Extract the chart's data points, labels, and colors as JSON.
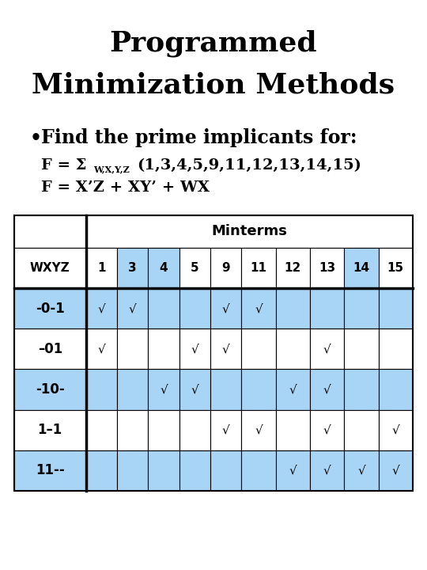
{
  "title_line1": "Programmed",
  "title_line2": "Minimization Methods",
  "bullet_text": "Find the prime implicants for:",
  "formula1_main": "F = Σ",
  "formula1_sub": "W,X,Y,Z",
  "formula1_rest": "(1,3,4,5,9,11,12,13,14,15)",
  "formula2": "F = X’Z + XY’ + WX",
  "col_header_top": "Minterms",
  "col_labels": [
    "WXYZ",
    "1",
    "3",
    "4",
    "5",
    "9",
    "11",
    "12",
    "13",
    "14",
    "15"
  ],
  "row_labels": [
    "-0-1",
    "–01",
    "-10-",
    "1–1",
    "11--"
  ],
  "row_bg": [
    "blue",
    "white",
    "blue",
    "white",
    "blue"
  ],
  "blue_color": "#a8d4f5",
  "white_color": "#ffffff",
  "blue_col_indices": [
    2,
    3,
    9
  ],
  "checks": [
    [
      1,
      1,
      0,
      0,
      1,
      1,
      0,
      0,
      0,
      0
    ],
    [
      1,
      0,
      0,
      1,
      1,
      0,
      0,
      1,
      0,
      0
    ],
    [
      0,
      0,
      1,
      1,
      0,
      0,
      1,
      1,
      0,
      0
    ],
    [
      0,
      0,
      0,
      0,
      1,
      1,
      0,
      1,
      0,
      1
    ],
    [
      0,
      0,
      0,
      0,
      0,
      0,
      1,
      1,
      1,
      1
    ]
  ],
  "white_boxes": [
    [],
    [
      4,
      5,
      7,
      9
    ],
    [],
    [
      1,
      4,
      7,
      9
    ],
    []
  ],
  "background": "#ffffff"
}
